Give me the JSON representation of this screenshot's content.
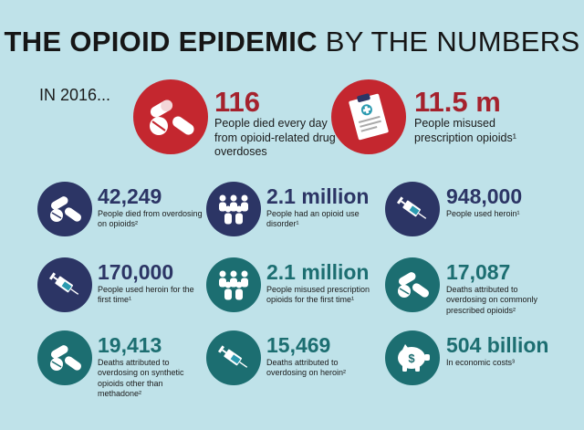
{
  "header": {
    "title_bold": "THE OPIOID EPIDEMIC",
    "title_rest": "BY THE NUMBERS",
    "year": "IN 2016..."
  },
  "colors": {
    "background": "#bfe2e9",
    "red": "#c4272f",
    "navy": "#2c3565",
    "teal": "#1c6e71"
  },
  "stats": [
    {
      "value": "116",
      "text": "People died every day from opioid-related drug overdoses",
      "icon": "pills-icon",
      "color": "red"
    },
    {
      "value": "11.5 m",
      "text": "People misused prescription opioids¹",
      "icon": "prescription-clipboard-icon",
      "color": "red"
    },
    {
      "value": "42,249",
      "text": "People died from overdosing on opioids²",
      "icon": "pills-icon",
      "color": "navy"
    },
    {
      "value": "2.1 million",
      "text": "People had an opioid use disorder¹",
      "icon": "people-group-icon",
      "color": "navy"
    },
    {
      "value": "948,000",
      "text": "People used heroin¹",
      "icon": "syringe-icon",
      "color": "navy"
    },
    {
      "value": "170,000",
      "text": "People used heroin for the first time¹",
      "icon": "syringe-icon",
      "color": "navy"
    },
    {
      "value": "2.1 million",
      "text": "People misused prescription opioids for the first time¹",
      "icon": "people-group-icon",
      "color": "teal"
    },
    {
      "value": "17,087",
      "text": "Deaths attributed to overdosing on commonly prescribed opioids²",
      "icon": "pills-icon",
      "color": "teal"
    },
    {
      "value": "19,413",
      "text": "Deaths attributed to overdosing on synthetic opioids other than methadone²",
      "icon": "pills-icon",
      "color": "teal"
    },
    {
      "value": "15,469",
      "text": "Deaths attributed to overdosing on heroin²",
      "icon": "syringe-icon",
      "color": "teal"
    },
    {
      "value": "504 billion",
      "text": "In economic costs³",
      "icon": "piggy-bank-icon",
      "color": "teal"
    }
  ]
}
